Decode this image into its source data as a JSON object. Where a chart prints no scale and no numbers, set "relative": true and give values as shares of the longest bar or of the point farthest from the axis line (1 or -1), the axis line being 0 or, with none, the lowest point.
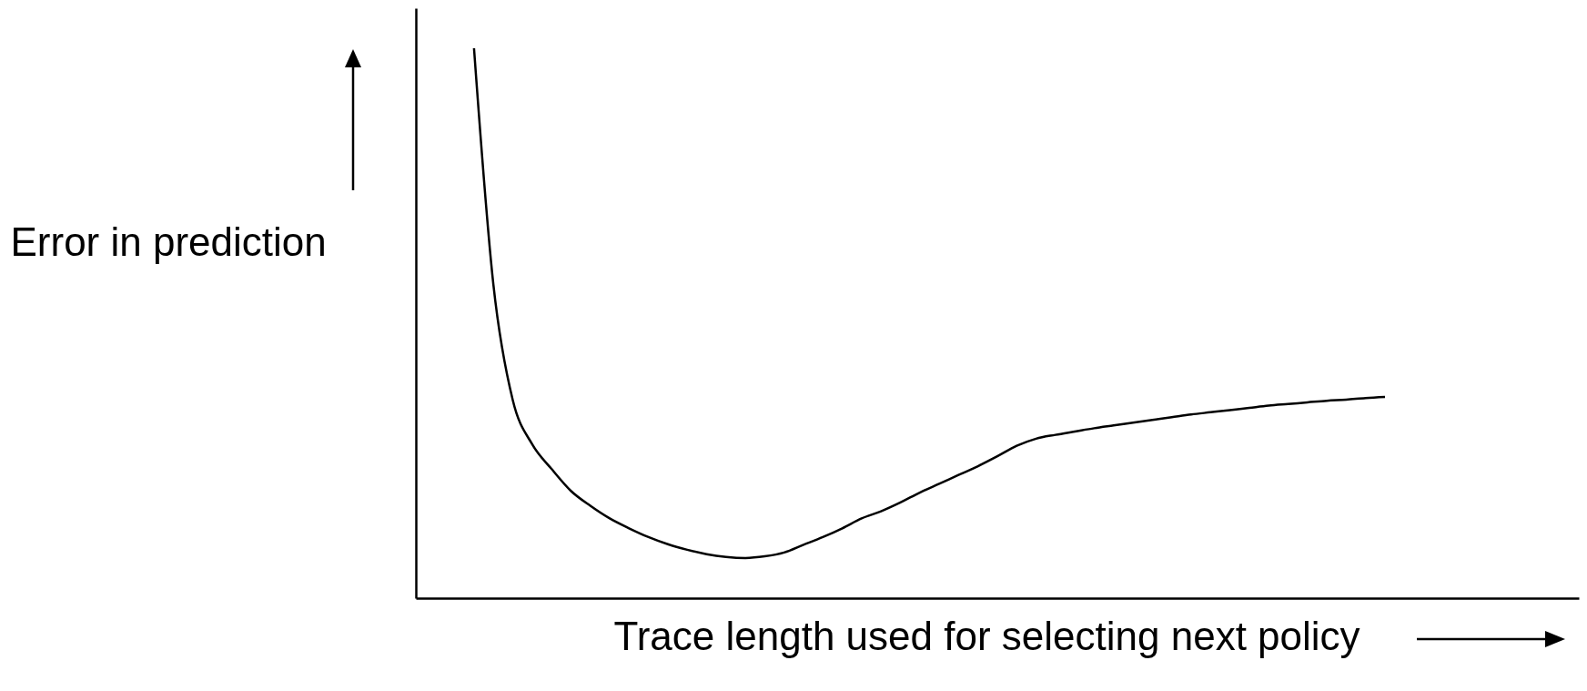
{
  "chart_data": {
    "type": "line",
    "xlabel": "Trace length used for selecting next policy",
    "ylabel": "Error in prediction",
    "relative": true,
    "tick_labels": false,
    "categories": [
      null,
      null,
      null,
      null,
      null,
      null,
      null,
      null,
      null,
      null,
      null,
      null,
      null,
      null,
      null,
      null,
      null,
      null,
      null,
      null,
      null,
      null,
      null,
      null,
      null,
      null,
      null,
      null,
      null,
      null,
      null,
      null,
      null,
      null,
      null,
      null,
      null,
      null,
      null,
      null,
      null,
      null,
      null,
      null,
      null,
      null,
      null,
      null,
      null,
      null,
      null,
      null,
      null,
      null,
      null,
      null,
      null,
      null,
      null,
      null,
      null
    ],
    "series": [
      {
        "color": "#000000",
        "values": [
          null,
          null,
          null,
          1.0,
          0.57,
          0.36,
          0.28,
          0.235,
          0.195,
          0.168,
          0.145,
          0.127,
          0.111,
          0.098,
          0.088,
          0.08,
          0.075,
          0.073,
          0.076,
          0.083,
          0.097,
          0.111,
          0.127,
          0.145,
          0.158,
          0.174,
          0.192,
          0.208,
          0.224,
          0.24,
          0.258,
          0.277,
          0.29,
          0.297,
          0.303,
          0.309,
          0.314,
          0.319,
          0.324,
          0.329,
          0.334,
          0.338,
          0.342,
          0.346,
          0.35,
          0.353,
          0.356,
          0.359,
          0.361,
          0.364,
          0.366,
          null,
          null,
          null,
          null,
          null,
          null,
          null,
          null,
          null,
          null
        ]
      }
    ]
  }
}
